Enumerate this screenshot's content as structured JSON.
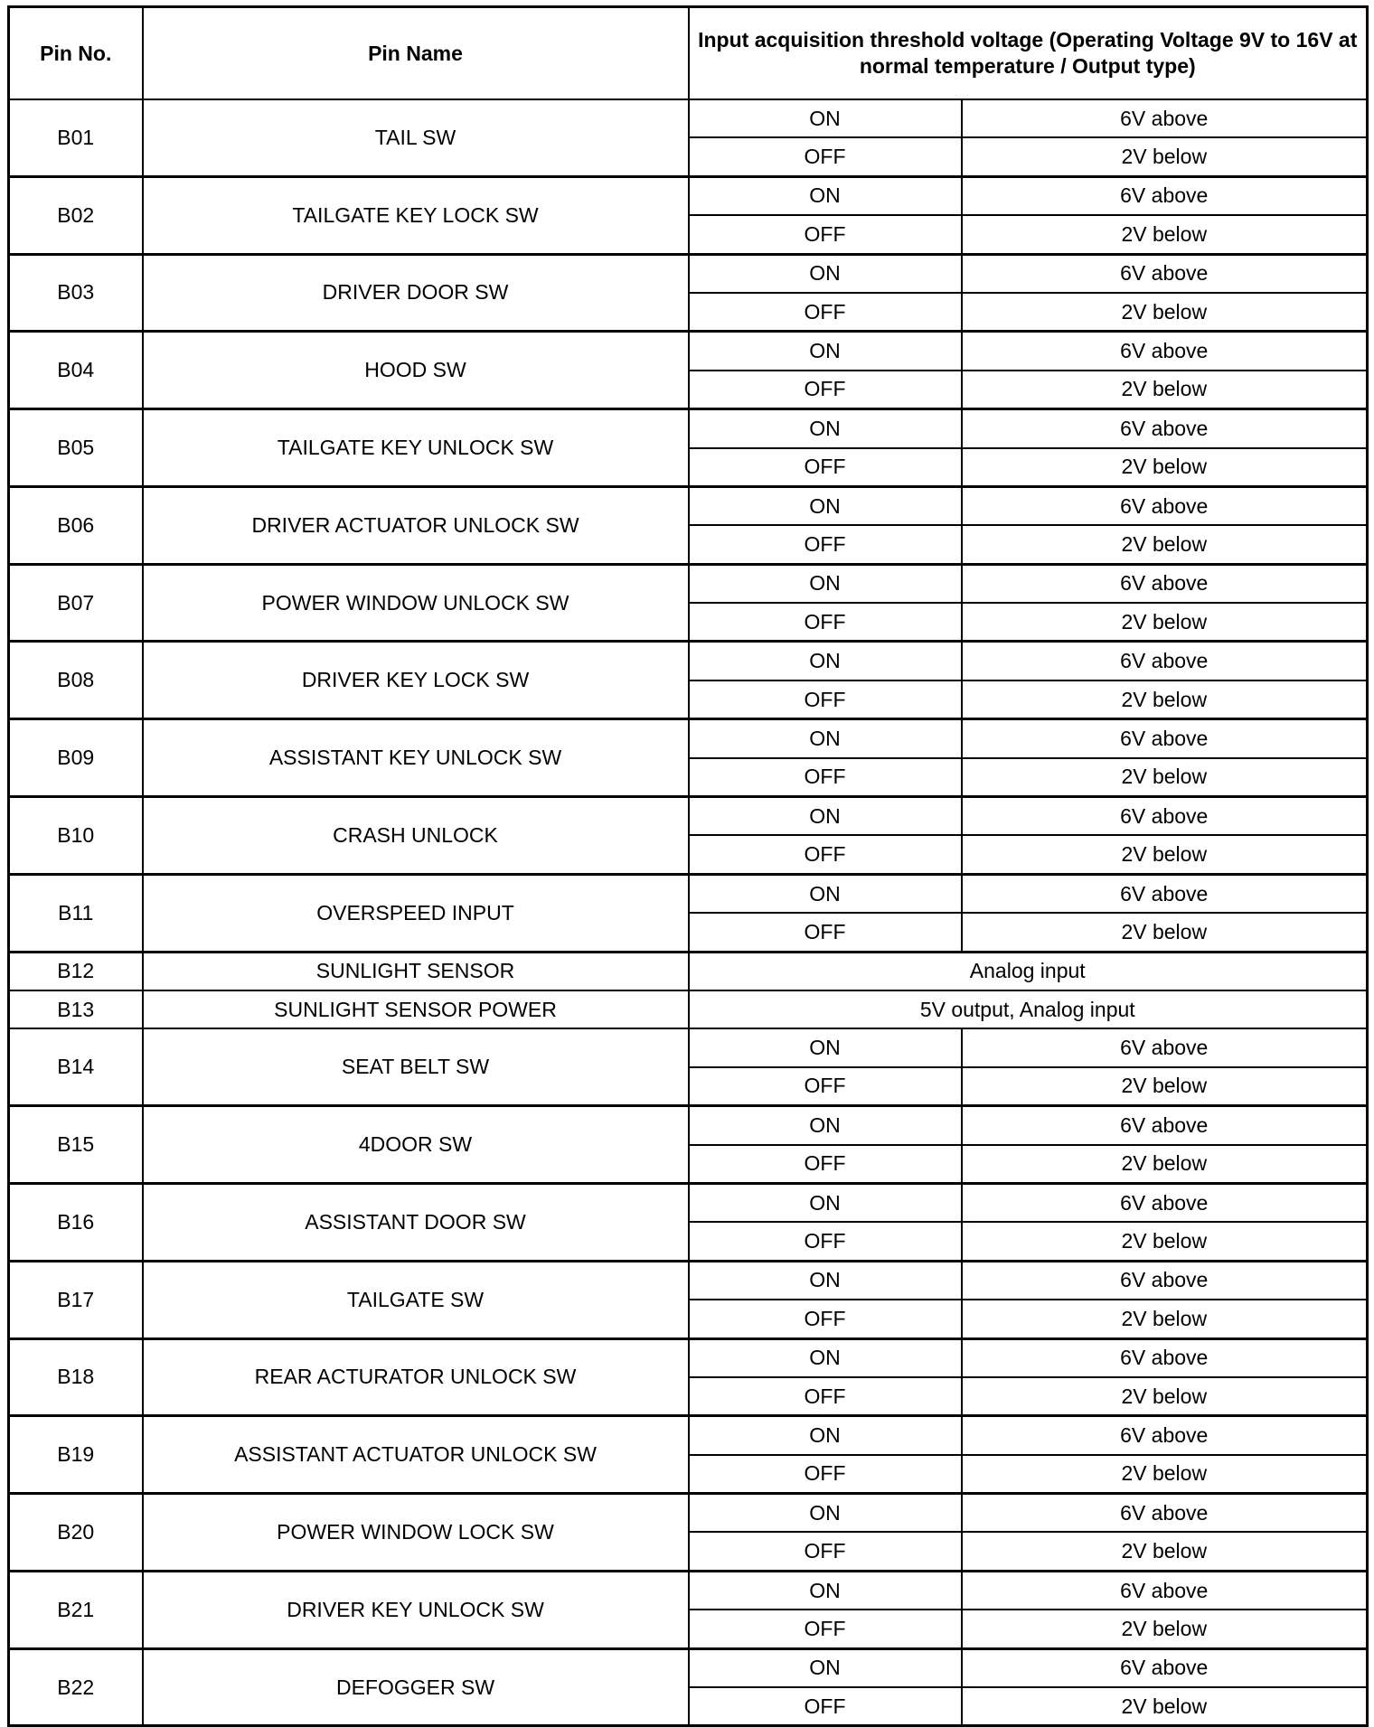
{
  "header": {
    "pin_no": "Pin No.",
    "pin_name": "Pin Name",
    "threshold": "Input acquisition threshold voltage (Operating Voltage 9V to 16V at normal temperature / Output type)"
  },
  "rows": [
    {
      "pin": "B01",
      "name": "TAIL SW",
      "on": "6V above",
      "off": "2V below"
    },
    {
      "pin": "B02",
      "name": "TAILGATE KEY LOCK SW",
      "on": "6V above",
      "off": "2V below"
    },
    {
      "pin": "B03",
      "name": "DRIVER DOOR SW",
      "on": "6V above",
      "off": "2V below"
    },
    {
      "pin": "B04",
      "name": "HOOD SW",
      "on": "6V above",
      "off": "2V below"
    },
    {
      "pin": "B05",
      "name": "TAILGATE KEY UNLOCK SW",
      "on": "6V above",
      "off": "2V below"
    },
    {
      "pin": "B06",
      "name": "DRIVER ACTUATOR UNLOCK SW",
      "on": "6V above",
      "off": "2V below"
    },
    {
      "pin": "B07",
      "name": "POWER WINDOW UNLOCK SW",
      "on": "6V above",
      "off": "2V below"
    },
    {
      "pin": "B08",
      "name": "DRIVER KEY LOCK SW",
      "on": "6V above",
      "off": "2V below"
    },
    {
      "pin": "B09",
      "name": "ASSISTANT KEY UNLOCK SW",
      "on": "6V above",
      "off": "2V below"
    },
    {
      "pin": "B10",
      "name": "CRASH UNLOCK",
      "on": "6V above",
      "off": "2V below"
    },
    {
      "pin": "B11",
      "name": "OVERSPEED INPUT",
      "on": "6V above",
      "off": "2V below"
    },
    {
      "pin": "B12",
      "name": "SUNLIGHT SENSOR",
      "single": "Analog input"
    },
    {
      "pin": "B13",
      "name": "SUNLIGHT SENSOR POWER",
      "single": "5V output, Analog input"
    },
    {
      "pin": "B14",
      "name": "SEAT BELT SW",
      "on": "6V above",
      "off": "2V below"
    },
    {
      "pin": "B15",
      "name": "4DOOR SW",
      "on": "6V above",
      "off": "2V below"
    },
    {
      "pin": "B16",
      "name": "ASSISTANT DOOR SW",
      "on": "6V above",
      "off": "2V below"
    },
    {
      "pin": "B17",
      "name": "TAILGATE SW",
      "on": "6V above",
      "off": "2V below"
    },
    {
      "pin": "B18",
      "name": "REAR ACTURATOR UNLOCK SW",
      "on": "6V above",
      "off": "2V below"
    },
    {
      "pin": "B19",
      "name": "ASSISTANT ACTUATOR UNLOCK SW",
      "on": "6V above",
      "off": "2V below"
    },
    {
      "pin": "B20",
      "name": "POWER WINDOW LOCK SW",
      "on": "6V above",
      "off": "2V below"
    },
    {
      "pin": "B21",
      "name": "DRIVER KEY UNLOCK SW",
      "on": "6V above",
      "off": "2V below"
    },
    {
      "pin": "B22",
      "name": "DEFOGGER SW",
      "on": "6V above",
      "off": "2V below"
    }
  ],
  "labels": {
    "on": "ON",
    "off": "OFF"
  }
}
